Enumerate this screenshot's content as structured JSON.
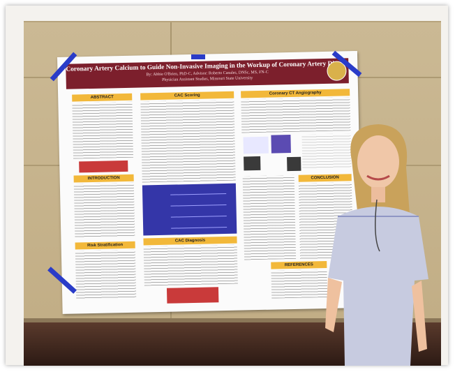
{
  "poster": {
    "title": "Coronary Artery Calcium to Guide Non-Invasive Imaging in the Workup of Coronary Artery Disease",
    "authors": "By: Abbie O'Brien, PhD-C, Advisor: Roberto Canales, DNSc, MS, FN-C",
    "affiliation": "Physician Assistant Studies, Missouri State University",
    "sections": {
      "abstract": "ABSTRACT",
      "cac_scoring": "CAC Scoring",
      "coronary_cta": "Coronary CT Angiography",
      "introduction": "INTRODUCTION",
      "risk_stratification": "Risk Stratification",
      "cac_diagnosis": "CAC Diagnosis",
      "conclusion": "CONCLUSION",
      "references": "REFERENCES"
    }
  },
  "colors": {
    "title_bar": "#7c1f2c",
    "section_header": "#f2b83a",
    "tape": "#2a3cc8",
    "figure": "#3436a8",
    "callout": "#c93a3a"
  }
}
